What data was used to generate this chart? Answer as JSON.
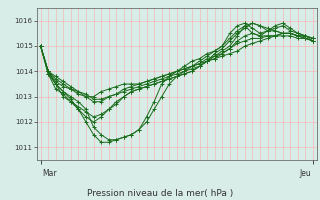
{
  "title": "Pression niveau de la mer( hPa )",
  "xlabel_left": "Mar",
  "xlabel_right": "Jeu",
  "ylim": [
    1010.5,
    1016.5
  ],
  "yticks": [
    1011,
    1012,
    1013,
    1014,
    1015,
    1016
  ],
  "background_color": "#d8ede8",
  "grid_color": "#ffaaaa",
  "line_color": "#1a6b1a",
  "n_points": 37,
  "lines": [
    [
      1015.0,
      1014.0,
      1013.5,
      1013.2,
      1013.0,
      1012.8,
      1012.5,
      1011.8,
      1011.5,
      1011.3,
      1011.3,
      1011.4,
      1011.5,
      1011.7,
      1012.0,
      1012.5,
      1013.0,
      1013.5,
      1013.8,
      1014.0,
      1014.2,
      1014.4,
      1014.6,
      1014.8,
      1015.0,
      1015.3,
      1015.6,
      1015.8,
      1015.5,
      1015.4,
      1015.6,
      1015.8,
      1015.9,
      1015.7,
      1015.5,
      1015.4,
      1015.3
    ],
    [
      1015.0,
      1014.0,
      1013.5,
      1013.2,
      1012.9,
      1012.5,
      1012.0,
      1011.5,
      1011.2,
      1011.2,
      1011.3,
      1011.4,
      1011.5,
      1011.7,
      1012.2,
      1012.8,
      1013.5,
      1013.8,
      1014.0,
      1014.2,
      1014.4,
      1014.5,
      1014.7,
      1014.8,
      1015.0,
      1015.5,
      1015.8,
      1015.9,
      1015.7,
      1015.5,
      1015.6,
      1015.7,
      1015.8,
      1015.6,
      1015.5,
      1015.4,
      1015.2
    ],
    [
      1015.0,
      1014.0,
      1013.6,
      1013.4,
      1013.3,
      1013.2,
      1013.0,
      1013.0,
      1013.2,
      1013.3,
      1013.4,
      1013.5,
      1013.5,
      1013.5,
      1013.6,
      1013.7,
      1013.8,
      1013.9,
      1014.0,
      1014.1,
      1014.2,
      1014.3,
      1014.4,
      1014.5,
      1014.6,
      1014.7,
      1014.8,
      1015.0,
      1015.1,
      1015.2,
      1015.3,
      1015.4,
      1015.5,
      1015.5,
      1015.4,
      1015.4,
      1015.3
    ],
    [
      1015.0,
      1014.0,
      1013.7,
      1013.5,
      1013.3,
      1013.1,
      1013.0,
      1012.8,
      1012.8,
      1013.0,
      1013.1,
      1013.3,
      1013.4,
      1013.5,
      1013.6,
      1013.7,
      1013.8,
      1013.9,
      1014.0,
      1014.1,
      1014.2,
      1014.3,
      1014.5,
      1014.6,
      1014.7,
      1014.9,
      1015.1,
      1015.2,
      1015.3,
      1015.3,
      1015.4,
      1015.4,
      1015.5,
      1015.5,
      1015.4,
      1015.4,
      1015.3
    ],
    [
      1015.0,
      1013.9,
      1013.5,
      1013.0,
      1012.8,
      1012.5,
      1012.2,
      1012.0,
      1012.2,
      1012.5,
      1012.7,
      1013.0,
      1013.2,
      1013.3,
      1013.4,
      1013.5,
      1013.6,
      1013.7,
      1013.8,
      1013.9,
      1014.0,
      1014.2,
      1014.4,
      1014.6,
      1014.8,
      1015.0,
      1015.4,
      1015.8,
      1015.9,
      1015.8,
      1015.7,
      1015.6,
      1015.5,
      1015.5,
      1015.4,
      1015.3,
      1015.2
    ],
    [
      1015.0,
      1013.9,
      1013.3,
      1013.1,
      1012.8,
      1012.6,
      1012.4,
      1012.2,
      1012.3,
      1012.5,
      1012.8,
      1013.0,
      1013.2,
      1013.3,
      1013.4,
      1013.5,
      1013.6,
      1013.7,
      1013.8,
      1013.9,
      1014.0,
      1014.2,
      1014.4,
      1014.7,
      1014.9,
      1015.2,
      1015.5,
      1015.7,
      1015.9,
      1015.8,
      1015.6,
      1015.6,
      1015.5,
      1015.5,
      1015.4,
      1015.3,
      1015.2
    ],
    [
      1015.0,
      1014.0,
      1013.8,
      1013.6,
      1013.4,
      1013.2,
      1013.1,
      1012.9,
      1012.9,
      1013.0,
      1013.1,
      1013.2,
      1013.3,
      1013.4,
      1013.5,
      1013.6,
      1013.7,
      1013.8,
      1013.9,
      1014.0,
      1014.1,
      1014.2,
      1014.4,
      1014.5,
      1014.7,
      1014.9,
      1015.2,
      1015.4,
      1015.5,
      1015.4,
      1015.4,
      1015.4,
      1015.4,
      1015.4,
      1015.3,
      1015.3,
      1015.2
    ]
  ]
}
